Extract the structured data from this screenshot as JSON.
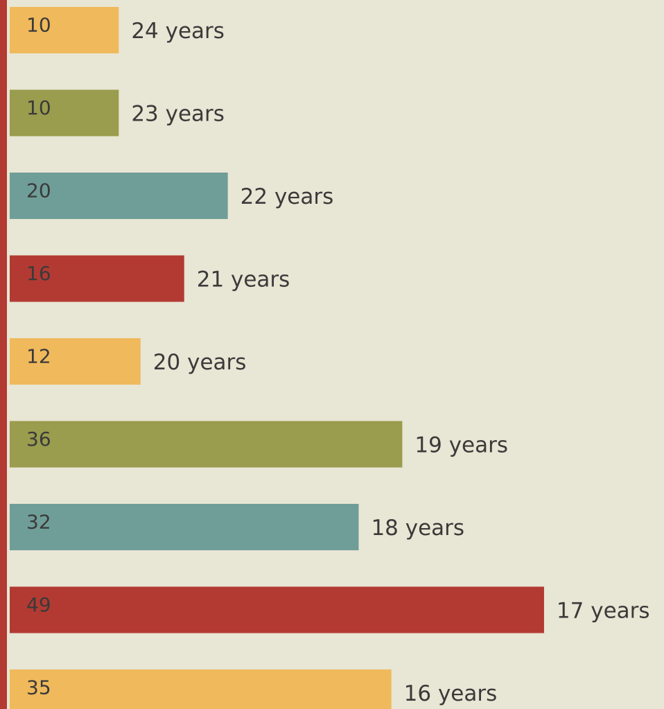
{
  "chart_data": {
    "type": "barh",
    "categories": [
      "24 years",
      "23 years",
      "22 years",
      "21 years",
      "20 years",
      "19 years",
      "18 years",
      "17 years",
      "16 years"
    ],
    "values": [
      10,
      10,
      20,
      16,
      12,
      36,
      32,
      49,
      35
    ],
    "colors": [
      "#f0b95c",
      "#9a9c4e",
      "#6f9e98",
      "#b23a33",
      "#f0b95c",
      "#9a9c4e",
      "#6f9e98",
      "#b23a33",
      "#f0b95c"
    ],
    "xlim": [
      0,
      60
    ]
  }
}
